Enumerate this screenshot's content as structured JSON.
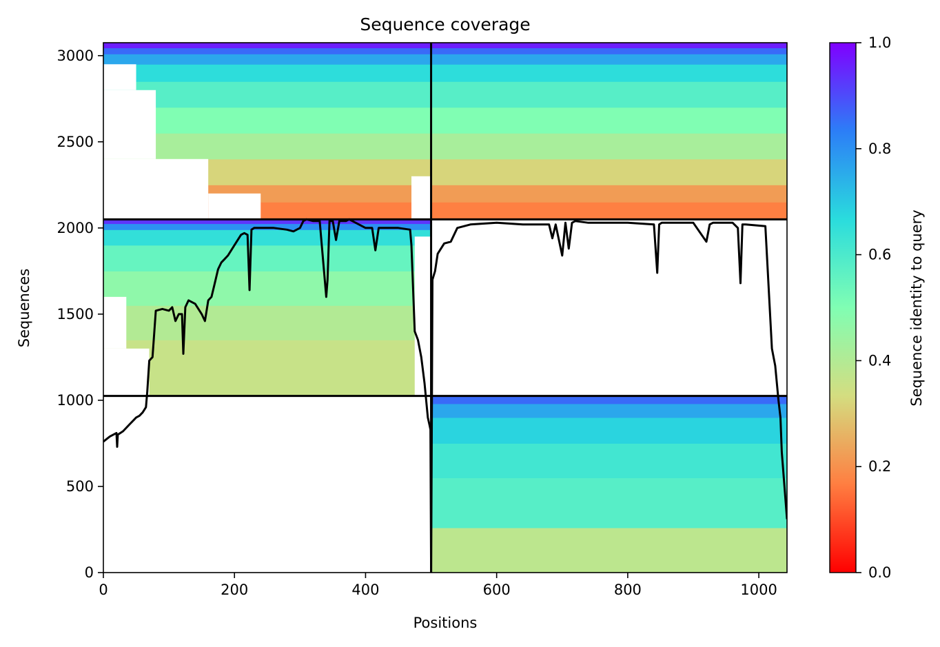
{
  "chart_data": {
    "type": "heatmap",
    "title": "Sequence coverage",
    "xlabel": "Positions",
    "ylabel": "Sequences",
    "xlim": [
      0,
      1043
    ],
    "ylim": [
      0,
      3075
    ],
    "x_ticks": [
      0,
      200,
      400,
      600,
      800,
      1000
    ],
    "y_ticks": [
      0,
      500,
      1000,
      1500,
      2000,
      2500,
      3000
    ],
    "colorbar": {
      "label": "Sequence identity to query",
      "colormap": "rainbow_r",
      "range": [
        0,
        1
      ],
      "ticks": [
        0.0,
        0.2,
        0.4,
        0.6,
        0.8,
        1.0
      ],
      "tick_labels": [
        "0.0",
        "0.2",
        "0.4",
        "0.6",
        "0.8",
        "1.0"
      ],
      "stops": [
        "#ff0000",
        "#ff7e41",
        "#d4dd80",
        "#80feb3",
        "#2adcdd",
        "#2c7ef7",
        "#8000ff"
      ]
    },
    "dividers": {
      "x": [
        500
      ],
      "y": [
        1025,
        2050
      ]
    },
    "blocks": [
      {
        "name": "upper-left",
        "x": [
          0,
          500
        ],
        "y": [
          2050,
          3075
        ],
        "bands": [
          {
            "from": 2050,
            "to": 2150,
            "identity": 0.17
          },
          {
            "from": 2150,
            "to": 2250,
            "identity": 0.22
          },
          {
            "from": 2250,
            "to": 2400,
            "identity": 0.32
          },
          {
            "from": 2400,
            "to": 2550,
            "identity": 0.42
          },
          {
            "from": 2550,
            "to": 2700,
            "identity": 0.5
          },
          {
            "from": 2700,
            "to": 2850,
            "identity": 0.58
          },
          {
            "from": 2850,
            "to": 2950,
            "identity": 0.66
          },
          {
            "from": 2950,
            "to": 3010,
            "identity": 0.76
          },
          {
            "from": 3010,
            "to": 3045,
            "identity": 0.86
          },
          {
            "from": 3045,
            "to": 3075,
            "identity": 0.96
          }
        ],
        "gaps": [
          {
            "x": [
              0,
              160
            ],
            "y": [
              2050,
              2400
            ]
          },
          {
            "x": [
              0,
              80
            ],
            "y": [
              2400,
              2800
            ]
          },
          {
            "x": [
              160,
              240
            ],
            "y": [
              2050,
              2200
            ]
          },
          {
            "x": [
              470,
              500
            ],
            "y": [
              2050,
              2300
            ]
          },
          {
            "x": [
              0,
              50
            ],
            "y": [
              2800,
              2950
            ]
          }
        ]
      },
      {
        "name": "upper-right",
        "x": [
          500,
          1043
        ],
        "y": [
          2050,
          3075
        ],
        "bands": [
          {
            "from": 2050,
            "to": 2150,
            "identity": 0.17
          },
          {
            "from": 2150,
            "to": 2250,
            "identity": 0.22
          },
          {
            "from": 2250,
            "to": 2400,
            "identity": 0.32
          },
          {
            "from": 2400,
            "to": 2550,
            "identity": 0.42
          },
          {
            "from": 2550,
            "to": 2700,
            "identity": 0.5
          },
          {
            "from": 2700,
            "to": 2850,
            "identity": 0.58
          },
          {
            "from": 2850,
            "to": 2950,
            "identity": 0.66
          },
          {
            "from": 2950,
            "to": 3010,
            "identity": 0.76
          },
          {
            "from": 3010,
            "to": 3045,
            "identity": 0.86
          },
          {
            "from": 3045,
            "to": 3075,
            "identity": 0.96
          }
        ],
        "gaps": []
      },
      {
        "name": "middle-left",
        "x": [
          0,
          500
        ],
        "y": [
          1025,
          2050
        ],
        "bands": [
          {
            "from": 1025,
            "to": 1350,
            "identity": 0.36
          },
          {
            "from": 1350,
            "to": 1550,
            "identity": 0.4
          },
          {
            "from": 1550,
            "to": 1750,
            "identity": 0.47
          },
          {
            "from": 1750,
            "to": 1900,
            "identity": 0.55
          },
          {
            "from": 1900,
            "to": 1990,
            "identity": 0.65
          },
          {
            "from": 1990,
            "to": 2025,
            "identity": 0.8
          },
          {
            "from": 2025,
            "to": 2050,
            "identity": 0.93
          }
        ],
        "gaps": [
          {
            "x": [
              0,
              70
            ],
            "y": [
              1025,
              1300
            ]
          },
          {
            "x": [
              0,
              35
            ],
            "y": [
              1300,
              1600
            ]
          },
          {
            "x": [
              475,
              500
            ],
            "y": [
              1025,
              1950
            ]
          }
        ]
      },
      {
        "name": "lower-right",
        "x": [
          500,
          1043
        ],
        "y": [
          0,
          1025
        ],
        "bands": [
          {
            "from": 0,
            "to": 260,
            "identity": 0.38
          },
          {
            "from": 260,
            "to": 550,
            "identity": 0.58
          },
          {
            "from": 550,
            "to": 750,
            "identity": 0.62
          },
          {
            "from": 750,
            "to": 900,
            "identity": 0.68
          },
          {
            "from": 900,
            "to": 980,
            "identity": 0.76
          },
          {
            "from": 980,
            "to": 1025,
            "identity": 0.86
          }
        ],
        "gaps": []
      }
    ],
    "series": [
      {
        "type": "line",
        "color": "#000000",
        "x": [
          0,
          10,
          20,
          21,
          22,
          30,
          40,
          45,
          50,
          55,
          60,
          65,
          67,
          70,
          75,
          80,
          90,
          100,
          105,
          110,
          115,
          120,
          122,
          125,
          130,
          140,
          150,
          155,
          160,
          165,
          170,
          175,
          180,
          185,
          190,
          200,
          210,
          215,
          220,
          223,
          226,
          230,
          240,
          260,
          280,
          290,
          300,
          305,
          310,
          320,
          330,
          340,
          342,
          345,
          350,
          355,
          360,
          370,
          375,
          380,
          400,
          410,
          415,
          420,
          430,
          450,
          468,
          470,
          475,
          480,
          485,
          490,
          495,
          498,
          499,
          500,
          502,
          506,
          510,
          520,
          530,
          540,
          560,
          600,
          640,
          680,
          685,
          690,
          700,
          705,
          710,
          715,
          720,
          740,
          780,
          800,
          840,
          845,
          848,
          852,
          860,
          900,
          920,
          925,
          930,
          940,
          960,
          968,
          972,
          975,
          980,
          1010,
          1020,
          1025,
          1030,
          1033,
          1035,
          1043
        ],
        "y": [
          760,
          790,
          810,
          730,
          800,
          820,
          860,
          880,
          900,
          910,
          930,
          960,
          1050,
          1230,
          1250,
          1520,
          1530,
          1520,
          1540,
          1460,
          1500,
          1500,
          1270,
          1540,
          1580,
          1560,
          1500,
          1460,
          1580,
          1600,
          1680,
          1760,
          1800,
          1820,
          1840,
          1900,
          1960,
          1970,
          1960,
          1640,
          1990,
          2000,
          2000,
          2000,
          1990,
          1980,
          2000,
          2040,
          2050,
          2040,
          2040,
          1600,
          1700,
          2040,
          2040,
          1930,
          2040,
          2040,
          2050,
          2040,
          2000,
          2000,
          1870,
          2000,
          2000,
          2000,
          1990,
          1900,
          1400,
          1350,
          1250,
          1100,
          900,
          850,
          830,
          0,
          1700,
          1750,
          1850,
          1910,
          1920,
          2000,
          2020,
          2030,
          2020,
          2020,
          1940,
          2020,
          1840,
          2030,
          1880,
          2030,
          2040,
          2030,
          2030,
          2030,
          2020,
          1740,
          2020,
          2030,
          2030,
          2030,
          1920,
          2020,
          2030,
          2030,
          2030,
          2000,
          1680,
          2020,
          2020,
          2010,
          1300,
          1200,
          1000,
          900,
          700,
          310
        ]
      }
    ]
  }
}
